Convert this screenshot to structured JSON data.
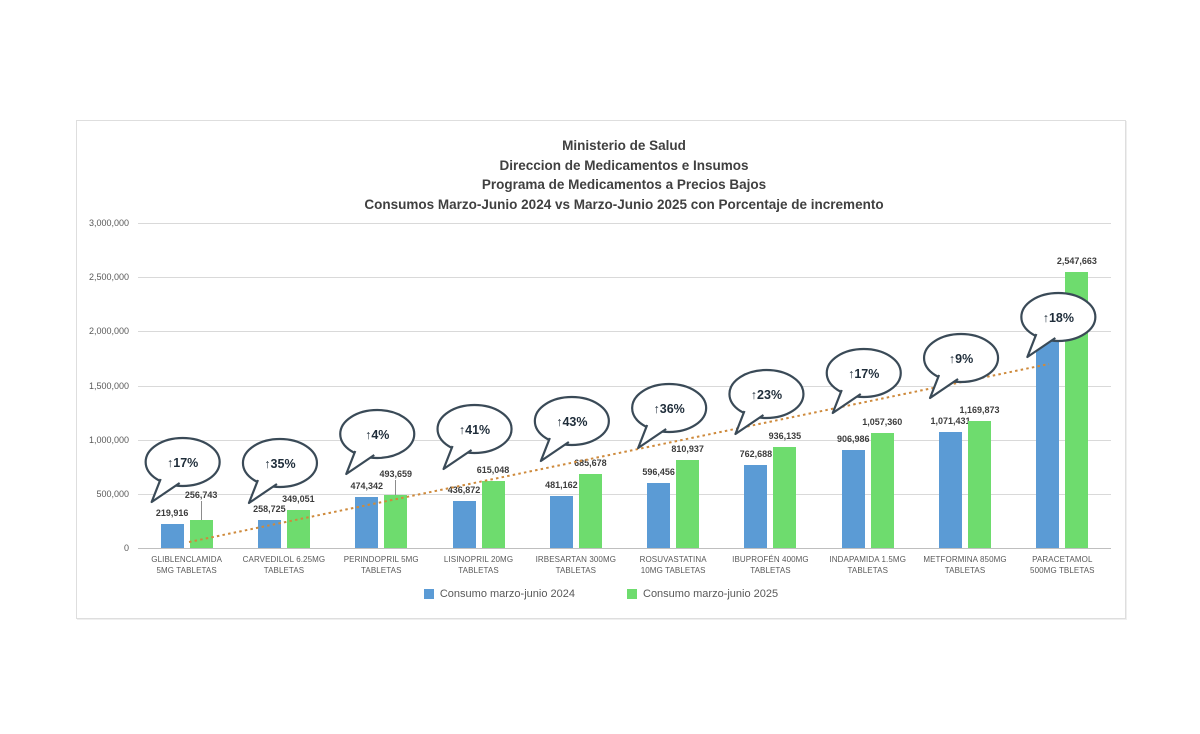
{
  "chart_data": {
    "type": "bar",
    "title_lines": [
      "Ministerio de Salud",
      "Direccion de Medicamentos e Insumos",
      "Programa de Medicamentos a Precios Bajos",
      "Consumos Marzo-Junio 2024 vs Marzo-Junio 2025 con Porcentaje de incremento"
    ],
    "categories": [
      [
        "GLIBLENCLAMIDA",
        "5MG TABLETAS"
      ],
      [
        "CARVEDILOL 6.25MG",
        "TABLETAS"
      ],
      [
        "PERINDOPRIL 5MG",
        "TABLETAS"
      ],
      [
        "LISINOPRIL 20MG",
        "TABLETAS"
      ],
      [
        "IRBESARTAN 300MG",
        "TABLETAS"
      ],
      [
        "ROSUVASTATINA",
        "10MG TABLETAS"
      ],
      [
        "IBUPROFÉN 400MG",
        "TABLETAS"
      ],
      [
        "INDAPAMIDA 1.5MG",
        "TABLETAS"
      ],
      [
        "METFORMINA 850MG",
        "TABLETAS"
      ],
      [
        "PARACETAMOL",
        "500MG TBLETAS"
      ]
    ],
    "series": [
      {
        "name": "Consumo marzo-junio 2024",
        "color": "#5B9BD5",
        "values": [
          219916,
          258725,
          474342,
          436872,
          481162,
          596456,
          762688,
          906986,
          1071431,
          2159036
        ],
        "labels": [
          "219,916",
          "258,725",
          "474,342",
          "436,872",
          "481,162",
          "596,456",
          "762,688",
          "906,986",
          "1,071,431",
          ""
        ]
      },
      {
        "name": "Consumo marzo-junio 2025",
        "color": "#6EDC6E",
        "values": [
          256743,
          349051,
          493659,
          615048,
          685678,
          810937,
          936135,
          1057360,
          1169873,
          2547663
        ],
        "labels": [
          "256,743",
          "349,051",
          "493,659",
          "615,048",
          "685,678",
          "810,937",
          "936,135",
          "1,057,360",
          "1,169,873",
          "2,547,663"
        ]
      }
    ],
    "increment_bubbles": [
      "↑17%",
      "↑35%",
      "↑4%",
      "↑41%",
      "↑43%",
      "↑36%",
      "↑23%",
      "↑17%",
      "↑9%",
      "↑18%"
    ],
    "ylim": [
      0,
      3000000
    ],
    "ytick_labels": [
      "0",
      "500,000",
      "1,000,000",
      "1,500,000",
      "2,000,000",
      "2,500,000",
      "3,000,000"
    ],
    "grid": true,
    "legend_position": "bottom",
    "trend_line": {
      "style": "dotted",
      "color": "#CE8A3C"
    },
    "layout_hints": {
      "bubble_cy": [
        341,
        342,
        313,
        308,
        300,
        287,
        273,
        252,
        237,
        196
      ],
      "green_label_raise": [
        14,
        0,
        10,
        0,
        0,
        0,
        0,
        0,
        0,
        0
      ],
      "trend_start": [
        112,
        421
      ],
      "trend_end": [
        972,
        243
      ]
    },
    "colors": {
      "bar_2024": "#5B9BD5",
      "bar_2025": "#6EDC6E",
      "grid": "#D9D9D9",
      "axis_text": "#595959",
      "title_text": "#404040",
      "bubble_stroke": "#3A4A57",
      "trend": "#CE8A3C"
    }
  }
}
